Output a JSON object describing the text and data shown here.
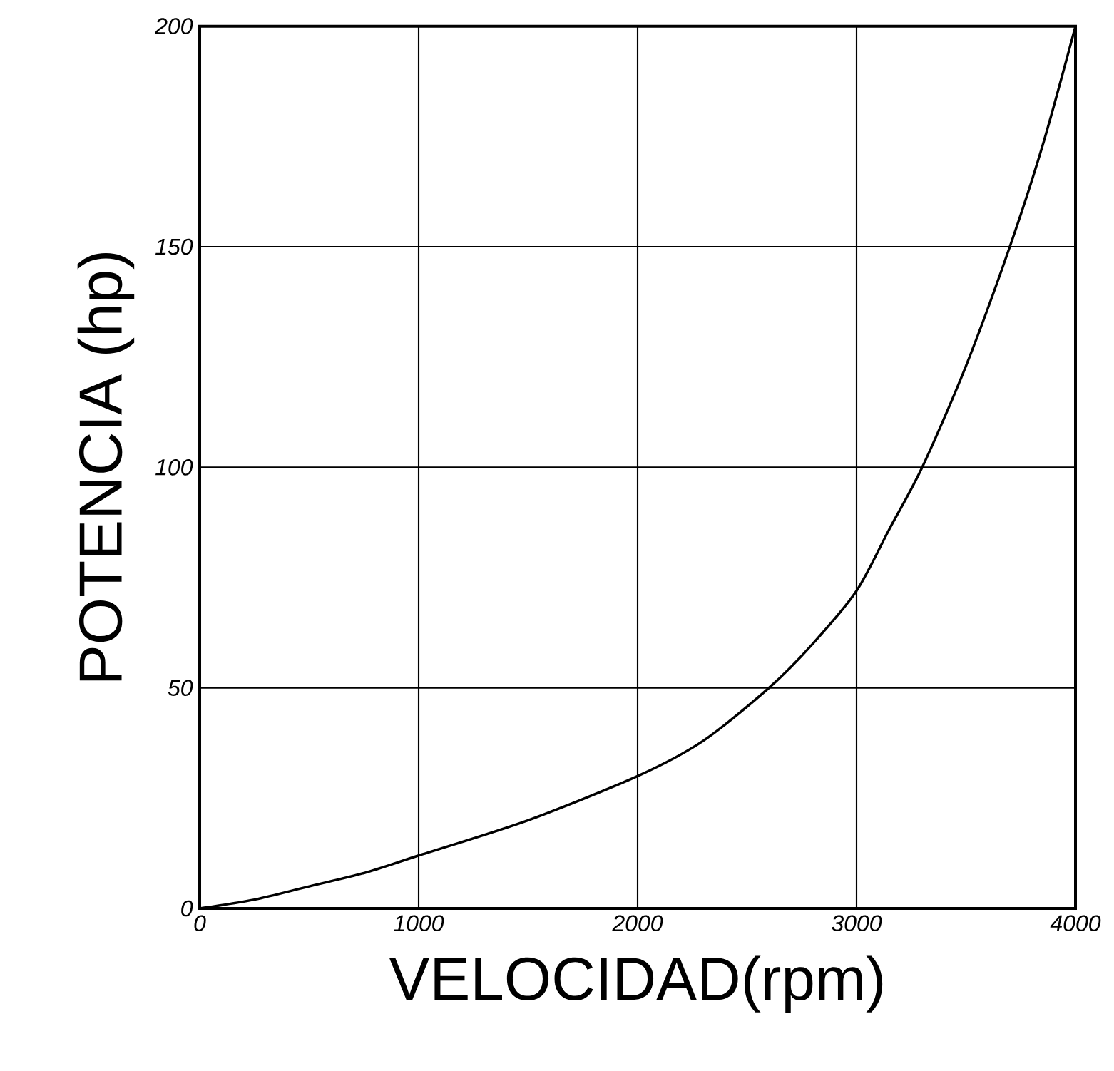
{
  "chart_data": {
    "type": "line",
    "xlabel": "VELOCIDAD(rpm)",
    "ylabel": "POTENCIA (hp)",
    "series": [
      {
        "color": "#000000",
        "x": [
          0,
          250,
          500,
          750,
          1000,
          1500,
          2000,
          2300,
          2600,
          2800,
          3000,
          3150,
          3300,
          3500,
          3700,
          3850,
          4000
        ],
        "values": [
          0,
          2,
          5,
          8,
          12,
          20,
          30,
          38,
          50,
          60,
          72,
          86,
          100,
          123,
          150,
          173,
          200
        ]
      }
    ],
    "xlim": [
      0,
      4000
    ],
    "ylim": [
      0,
      200
    ],
    "xticks": [
      0,
      1000,
      2000,
      3000,
      4000
    ],
    "yticks": [
      0,
      50,
      100,
      150,
      200
    ],
    "grid": true,
    "marker": "none",
    "line_style": "solid"
  }
}
